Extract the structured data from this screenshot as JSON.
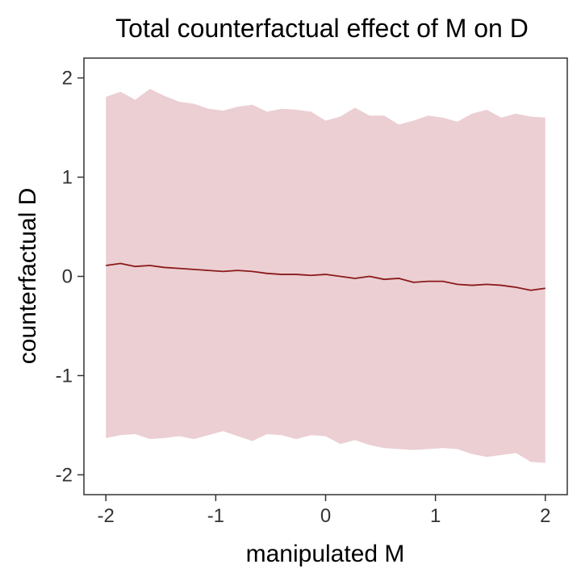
{
  "chart_data": {
    "type": "area",
    "title": "Total counterfactual effect of M on D",
    "xlabel": "manipulated M",
    "ylabel": "counterfactual D",
    "xlim": [
      -2.2,
      2.2
    ],
    "ylim": [
      -2.2,
      2.2
    ],
    "x_ticks": [
      -2,
      -1,
      0,
      1,
      2
    ],
    "x_tick_labels": [
      "-2",
      "-1",
      "0",
      "1",
      "2"
    ],
    "y_ticks": [
      -2,
      -1,
      0,
      1,
      2
    ],
    "y_tick_labels": [
      "-2",
      "-1",
      "0",
      "1",
      "2"
    ],
    "grid": false,
    "legend": "none",
    "colors": {
      "line": "#8b1a1a",
      "band": "#ebcfd3",
      "frame": "#333333"
    },
    "x": [
      -2.0,
      -1.867,
      -1.733,
      -1.6,
      -1.467,
      -1.333,
      -1.2,
      -1.067,
      -0.933,
      -0.8,
      -0.667,
      -0.533,
      -0.4,
      -0.267,
      -0.133,
      0.0,
      0.133,
      0.267,
      0.4,
      0.533,
      0.667,
      0.8,
      0.933,
      1.067,
      1.2,
      1.333,
      1.467,
      1.6,
      1.733,
      1.867,
      2.0
    ],
    "series": [
      {
        "values": [
          0.11,
          0.13,
          0.1,
          0.11,
          0.09,
          0.08,
          0.07,
          0.06,
          0.05,
          0.06,
          0.05,
          0.03,
          0.02,
          0.02,
          0.01,
          0.02,
          0.0,
          -0.02,
          0.0,
          -0.03,
          -0.02,
          -0.06,
          -0.05,
          -0.05,
          -0.08,
          -0.09,
          -0.08,
          -0.09,
          -0.11,
          -0.14,
          -0.12
        ],
        "upper": [
          1.81,
          1.86,
          1.78,
          1.89,
          1.82,
          1.76,
          1.74,
          1.69,
          1.67,
          1.71,
          1.73,
          1.66,
          1.69,
          1.68,
          1.66,
          1.57,
          1.61,
          1.7,
          1.62,
          1.62,
          1.53,
          1.57,
          1.62,
          1.6,
          1.56,
          1.64,
          1.68,
          1.6,
          1.64,
          1.61,
          1.6
        ],
        "lower": [
          -1.63,
          -1.6,
          -1.59,
          -1.64,
          -1.63,
          -1.61,
          -1.64,
          -1.6,
          -1.56,
          -1.61,
          -1.66,
          -1.59,
          -1.6,
          -1.64,
          -1.6,
          -1.61,
          -1.69,
          -1.65,
          -1.7,
          -1.73,
          -1.74,
          -1.75,
          -1.74,
          -1.73,
          -1.74,
          -1.79,
          -1.82,
          -1.8,
          -1.78,
          -1.87,
          -1.88
        ]
      }
    ]
  }
}
